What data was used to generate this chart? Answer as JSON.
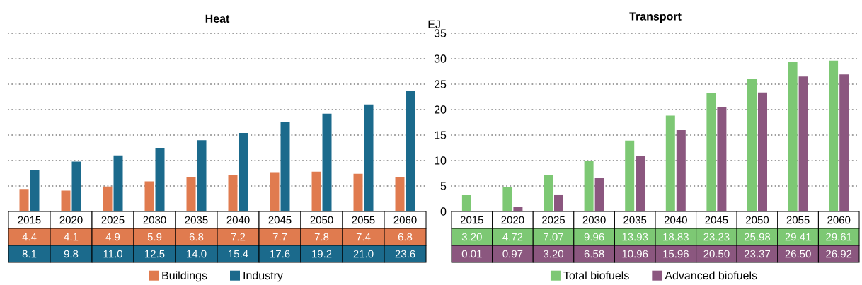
{
  "chart_data": [
    {
      "type": "bar",
      "title": "Heat",
      "categories": [
        "2015",
        "2020",
        "2025",
        "2030",
        "2035",
        "2040",
        "2045",
        "2050",
        "2055",
        "2060"
      ],
      "series": [
        {
          "name": "Buildings",
          "color": "#e07b4f",
          "values": [
            4.4,
            4.1,
            4.9,
            5.9,
            6.8,
            7.2,
            7.7,
            7.8,
            7.4,
            6.8
          ],
          "value_labels": [
            "4.4",
            "4.1",
            "4.9",
            "5.9",
            "6.8",
            "7.2",
            "7.7",
            "7.8",
            "7.4",
            "6.8"
          ]
        },
        {
          "name": "Industry",
          "color": "#1b6a8c",
          "values": [
            8.1,
            9.8,
            11.0,
            12.5,
            14.0,
            15.4,
            17.6,
            19.2,
            21.0,
            23.6
          ],
          "value_labels": [
            "8.1",
            "9.8",
            "11.0",
            "12.5",
            "14.0",
            "15.4",
            "17.6",
            "19.2",
            "21.0",
            "23.6"
          ]
        }
      ],
      "ylim": [
        0,
        35
      ],
      "yticks": [
        0,
        5,
        10,
        15,
        20,
        25,
        30,
        35
      ],
      "tick_labels": "x",
      "grid": "y",
      "legend": "bottom"
    },
    {
      "type": "bar",
      "title": "Transport",
      "ylabel": "EJ",
      "categories": [
        "2015",
        "2020",
        "2025",
        "2030",
        "2035",
        "2040",
        "2045",
        "2050",
        "2055",
        "2060"
      ],
      "series": [
        {
          "name": "Total biofuels",
          "color": "#7dc874",
          "values": [
            3.2,
            4.72,
            7.07,
            9.96,
            13.93,
            18.83,
            23.23,
            25.98,
            29.41,
            29.61
          ],
          "value_labels": [
            "3.20",
            "4.72",
            "7.07",
            "9.96",
            "13.93",
            "18.83",
            "23.23",
            "25.98",
            "29.41",
            "29.61"
          ]
        },
        {
          "name": "Advanced biofuels",
          "color": "#8b577f",
          "values": [
            0.01,
            0.97,
            3.2,
            6.58,
            10.96,
            15.96,
            20.5,
            23.37,
            26.5,
            26.92
          ],
          "value_labels": [
            "0.01",
            "0.97",
            "3.20",
            "6.58",
            "10.96",
            "15.96",
            "20.50",
            "23.37",
            "26.50",
            "26.92"
          ]
        }
      ],
      "ylim": [
        0,
        35
      ],
      "yticks": [
        0,
        5,
        10,
        15,
        20,
        25,
        30,
        35
      ],
      "grid": "y",
      "legend": "bottom"
    }
  ]
}
